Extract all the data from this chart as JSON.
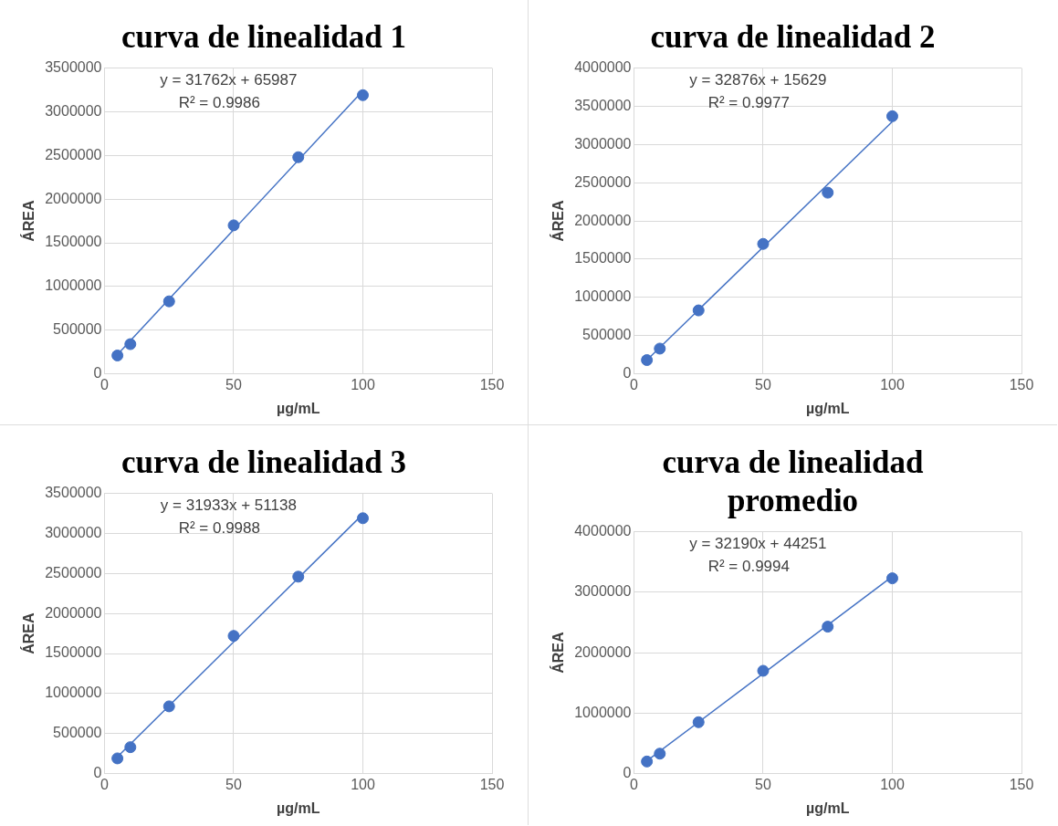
{
  "chart_data": [
    {
      "type": "scatter",
      "title": "curva de linealidad 1",
      "xlabel": "µg/mL",
      "ylabel": "ÁREA",
      "x": [
        5,
        10,
        25,
        50,
        75,
        100
      ],
      "series": [
        {
          "color": "#4472c4",
          "values": [
            210000,
            340000,
            830000,
            1700000,
            2480000,
            3190000
          ]
        },
        {
          "type": "line",
          "color": "#4472c4",
          "values": [
            220000,
            null,
            null,
            null,
            null,
            3240000
          ],
          "marker": "none"
        }
      ],
      "xlim": [
        0,
        150
      ],
      "xticks": [
        0,
        50,
        100,
        150
      ],
      "ylim": [
        0,
        3500000
      ],
      "yticks": [
        0,
        500000,
        1000000,
        1500000,
        2000000,
        2500000,
        3000000,
        3500000
      ],
      "grid": true,
      "legend": false,
      "marker": "circle",
      "annotations": [
        "y = 31762x + 65987",
        "R² = 0.9986"
      ]
    },
    {
      "type": "scatter",
      "title": "curva de linealidad 2",
      "xlabel": "µg/mL",
      "ylabel": "ÁREA",
      "x": [
        5,
        10,
        25,
        50,
        75,
        100
      ],
      "series": [
        {
          "color": "#4472c4",
          "values": [
            180000,
            330000,
            830000,
            1700000,
            2370000,
            3370000
          ]
        },
        {
          "type": "line",
          "color": "#4472c4",
          "values": [
            180000,
            null,
            null,
            null,
            null,
            3300000
          ],
          "marker": "none"
        }
      ],
      "xlim": [
        0,
        150
      ],
      "xticks": [
        0,
        50,
        100,
        150
      ],
      "ylim": [
        0,
        4000000
      ],
      "yticks": [
        0,
        500000,
        1000000,
        1500000,
        2000000,
        2500000,
        3000000,
        3500000,
        4000000
      ],
      "grid": true,
      "legend": false,
      "marker": "circle",
      "annotations": [
        "y = 32876x + 15629",
        "R² = 0.9977"
      ]
    },
    {
      "type": "scatter",
      "title": "curva de linealidad 3",
      "xlabel": "µg/mL",
      "ylabel": "ÁREA",
      "x": [
        5,
        10,
        25,
        50,
        75,
        100
      ],
      "series": [
        {
          "color": "#4472c4",
          "values": [
            190000,
            330000,
            840000,
            1720000,
            2460000,
            3190000
          ]
        },
        {
          "type": "line",
          "color": "#4472c4",
          "values": [
            210000,
            null,
            null,
            null,
            null,
            3240000
          ],
          "marker": "none"
        }
      ],
      "xlim": [
        0,
        150
      ],
      "xticks": [
        0,
        50,
        100,
        150
      ],
      "ylim": [
        0,
        3500000
      ],
      "yticks": [
        0,
        500000,
        1000000,
        1500000,
        2000000,
        2500000,
        3000000,
        3500000
      ],
      "grid": true,
      "legend": false,
      "marker": "circle",
      "annotations": [
        "y = 31933x + 51138",
        "R² = 0.9988"
      ]
    },
    {
      "type": "scatter",
      "title": "curva de linealidad promedio",
      "xlabel": "µg/mL",
      "ylabel": "ÁREA",
      "x": [
        5,
        10,
        25,
        50,
        75,
        100
      ],
      "series": [
        {
          "color": "#4472c4",
          "values": [
            200000,
            330000,
            850000,
            1700000,
            2430000,
            3230000
          ]
        },
        {
          "type": "line",
          "color": "#4472c4",
          "values": [
            210000,
            null,
            null,
            null,
            null,
            3260000
          ],
          "marker": "none"
        }
      ],
      "xlim": [
        0,
        150
      ],
      "xticks": [
        0,
        50,
        100,
        150
      ],
      "ylim": [
        0,
        4000000
      ],
      "yticks": [
        0,
        1000000,
        2000000,
        3000000,
        4000000
      ],
      "grid": true,
      "legend": false,
      "marker": "circle",
      "annotations": [
        "y = 32190x + 44251",
        "R² = 0.9994"
      ]
    }
  ]
}
